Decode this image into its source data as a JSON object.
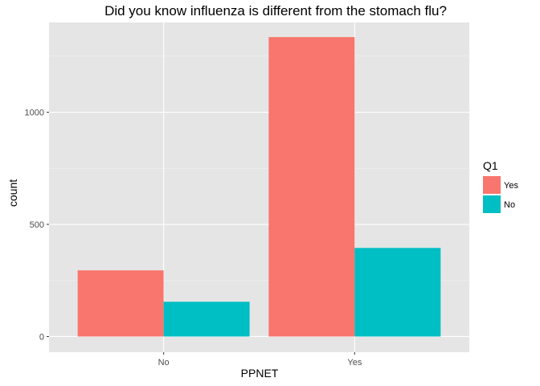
{
  "chart_data": {
    "type": "bar",
    "title": "Did you know influenza is different from the stomach flu?",
    "xlabel": "PPNET",
    "ylabel": "count",
    "categories": [
      "No",
      "Yes"
    ],
    "series": [
      {
        "name": "Yes",
        "values": [
          295,
          1335
        ],
        "color": "#F8766D"
      },
      {
        "name": "No",
        "values": [
          155,
          395
        ],
        "color": "#00BFC4"
      }
    ],
    "ylim": [
      -70,
      1400
    ],
    "yticks": [
      0,
      500,
      1000
    ],
    "ytick_labels": [
      "0",
      "500",
      "1000"
    ],
    "legend": {
      "title": "Q1",
      "position": "right"
    },
    "grid": true,
    "background_color": "#E5E5E5"
  }
}
